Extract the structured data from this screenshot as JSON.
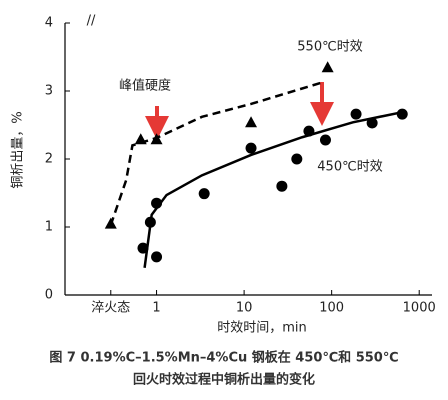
{
  "chart_data": {
    "type": "scatter",
    "caption": [
      "图 7   0.19%C–1.5%Mn–4%Cu 钢板在 450℃和 550℃",
      "回火时效过程中铜析出量的变化"
    ],
    "xlabel": "时效时间，min",
    "ylabel": "铜析出量，%",
    "xscale": "log",
    "xlim": [
      0.09,
      1400
    ],
    "ylim": [
      0,
      4
    ],
    "xticks": [
      {
        "value": 0.3,
        "label": "淬火态"
      },
      1,
      10,
      100,
      1000
    ],
    "yticks": [
      0,
      1,
      2,
      3,
      4
    ],
    "annotation": "峰值硬度",
    "series": [
      {
        "name": "550℃时效",
        "marker": "triangle",
        "color": "#000000",
        "x": [
          0.3,
          0.66,
          1.0,
          12,
          90
        ],
        "values": [
          1.05,
          2.29,
          2.29,
          2.54,
          3.35
        ]
      },
      {
        "name": "450℃时效",
        "marker": "circle",
        "color": "#000000",
        "x": [
          0.7,
          0.85,
          1.0,
          1.0,
          3.5,
          12,
          27,
          40,
          55,
          85,
          190,
          290,
          640
        ],
        "values": [
          0.69,
          1.07,
          1.35,
          0.56,
          1.49,
          2.16,
          1.6,
          2.0,
          2.41,
          2.28,
          2.66,
          2.53,
          2.66
        ]
      }
    ],
    "trend_lines": [
      {
        "style": "dashed",
        "x": [
          0.3,
          0.45,
          0.53,
          1.0,
          3.3,
          12,
          80
        ],
        "values": [
          1.03,
          1.69,
          2.2,
          2.31,
          2.62,
          2.81,
          3.13
        ]
      },
      {
        "style": "solid",
        "x": [
          0.73,
          0.88,
          1.3,
          3.3,
          12,
          46,
          175,
          650
        ],
        "values": [
          0.4,
          1.18,
          1.47,
          1.76,
          2.06,
          2.32,
          2.54,
          2.69
        ]
      }
    ]
  }
}
